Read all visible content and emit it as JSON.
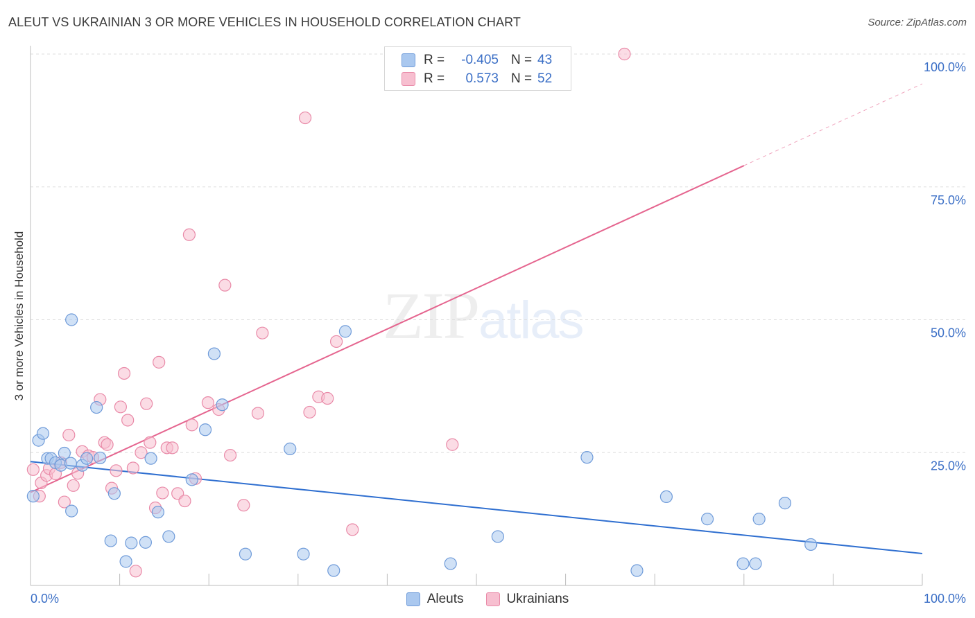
{
  "header": {
    "title": "ALEUT VS UKRAINIAN 3 OR MORE VEHICLES IN HOUSEHOLD CORRELATION CHART",
    "source": "Source: ZipAtlas.com"
  },
  "watermark": {
    "zip": "ZIP",
    "atlas": "atlas"
  },
  "legend": {
    "rows": [
      {
        "r_label": "R =",
        "r_value": "-0.405",
        "n_label": "N =",
        "n_value": "43"
      },
      {
        "r_label": "R =",
        "r_value": "0.573",
        "n_label": "N =",
        "n_value": "52"
      }
    ]
  },
  "bottom_legend": {
    "aleuts": "Aleuts",
    "ukrainians": "Ukrainians"
  },
  "colors": {
    "aleut_fill": "#aac8ef",
    "aleut_stroke": "#6f9bd9",
    "aleut_line": "#2f6fd0",
    "ukr_fill": "#f7bfd0",
    "ukr_stroke": "#e98aa8",
    "ukr_line": "#e5658f",
    "axis_text": "#3b6fc6",
    "grid": "#dddddd"
  },
  "chart_data": {
    "type": "scatter",
    "title": "ALEUT VS UKRAINIAN 3 OR MORE VEHICLES IN HOUSEHOLD CORRELATION CHART",
    "xlabel": "",
    "ylabel": "3 or more Vehicles in Household",
    "xlim": [
      0,
      100
    ],
    "ylim": [
      0,
      100
    ],
    "x_tick_labels": [
      "0.0%",
      "100.0%"
    ],
    "y_tick_labels": [
      "25.0%",
      "50.0%",
      "75.0%",
      "100.0%"
    ],
    "series": [
      {
        "name": "Aleuts",
        "r": -0.405,
        "n": 43,
        "trend": {
          "x": [
            0,
            100
          ],
          "y": [
            23.3,
            6.0
          ]
        },
        "points": [
          [
            0.3,
            16.8
          ],
          [
            0.9,
            27.3
          ],
          [
            1.4,
            28.6
          ],
          [
            1.9,
            23.9
          ],
          [
            2.3,
            23.9
          ],
          [
            2.8,
            23.1
          ],
          [
            3.4,
            22.6
          ],
          [
            3.8,
            24.9
          ],
          [
            4.6,
            50.0
          ],
          [
            4.6,
            14.0
          ],
          [
            5.8,
            22.6
          ],
          [
            6.3,
            23.9
          ],
          [
            7.4,
            33.5
          ],
          [
            7.8,
            24.0
          ],
          [
            9.0,
            8.4
          ],
          [
            9.4,
            17.3
          ],
          [
            10.7,
            4.5
          ],
          [
            11.3,
            8.0
          ],
          [
            12.9,
            8.1
          ],
          [
            13.5,
            23.9
          ],
          [
            14.3,
            13.8
          ],
          [
            15.5,
            9.2
          ],
          [
            18.1,
            19.9
          ],
          [
            19.6,
            29.3
          ],
          [
            20.6,
            43.6
          ],
          [
            21.5,
            34.0
          ],
          [
            24.1,
            5.9
          ],
          [
            29.1,
            25.7
          ],
          [
            30.6,
            5.9
          ],
          [
            34.0,
            2.8
          ],
          [
            35.3,
            47.8
          ],
          [
            47.1,
            4.1
          ],
          [
            52.4,
            9.2
          ],
          [
            62.4,
            24.1
          ],
          [
            68.0,
            2.8
          ],
          [
            71.3,
            16.7
          ],
          [
            75.9,
            12.5
          ],
          [
            79.9,
            4.1
          ],
          [
            81.3,
            4.1
          ],
          [
            81.7,
            12.5
          ],
          [
            84.6,
            15.5
          ],
          [
            87.5,
            7.7
          ],
          [
            4.5,
            23.0
          ]
        ]
      },
      {
        "name": "Ukrainians",
        "r": 0.573,
        "n": 52,
        "trend": {
          "x": [
            0,
            80
          ],
          "y": [
            17.5,
            79.0
          ]
        },
        "trend_dashed": {
          "x": [
            80,
            100
          ],
          "y": [
            79.0,
            94.4
          ]
        },
        "points": [
          [
            0.3,
            21.8
          ],
          [
            1.0,
            16.8
          ],
          [
            1.2,
            19.3
          ],
          [
            1.8,
            20.7
          ],
          [
            2.1,
            22.0
          ],
          [
            2.8,
            21.0
          ],
          [
            3.4,
            23.1
          ],
          [
            3.8,
            15.7
          ],
          [
            4.3,
            28.3
          ],
          [
            4.8,
            18.8
          ],
          [
            5.3,
            21.1
          ],
          [
            5.8,
            25.2
          ],
          [
            6.5,
            24.4
          ],
          [
            7.0,
            24.1
          ],
          [
            7.8,
            35.0
          ],
          [
            8.3,
            26.9
          ],
          [
            8.6,
            26.5
          ],
          [
            9.1,
            18.3
          ],
          [
            9.6,
            21.6
          ],
          [
            10.1,
            33.6
          ],
          [
            10.5,
            39.9
          ],
          [
            10.9,
            31.1
          ],
          [
            11.5,
            22.1
          ],
          [
            11.8,
            2.7
          ],
          [
            12.4,
            25.0
          ],
          [
            13.0,
            34.2
          ],
          [
            13.4,
            26.9
          ],
          [
            14.0,
            14.6
          ],
          [
            14.4,
            42.0
          ],
          [
            14.8,
            17.4
          ],
          [
            15.3,
            25.9
          ],
          [
            15.9,
            25.9
          ],
          [
            16.5,
            17.3
          ],
          [
            17.3,
            15.9
          ],
          [
            17.8,
            66.0
          ],
          [
            18.1,
            30.2
          ],
          [
            18.5,
            20.1
          ],
          [
            19.9,
            34.4
          ],
          [
            21.1,
            33.1
          ],
          [
            21.8,
            56.5
          ],
          [
            22.4,
            24.5
          ],
          [
            23.9,
            15.1
          ],
          [
            25.5,
            32.4
          ],
          [
            26.0,
            47.5
          ],
          [
            30.8,
            88.0
          ],
          [
            31.3,
            32.6
          ],
          [
            32.3,
            35.5
          ],
          [
            33.3,
            35.2
          ],
          [
            34.3,
            45.9
          ],
          [
            36.1,
            10.5
          ],
          [
            47.3,
            26.5
          ],
          [
            66.6,
            100.0
          ]
        ]
      }
    ]
  }
}
